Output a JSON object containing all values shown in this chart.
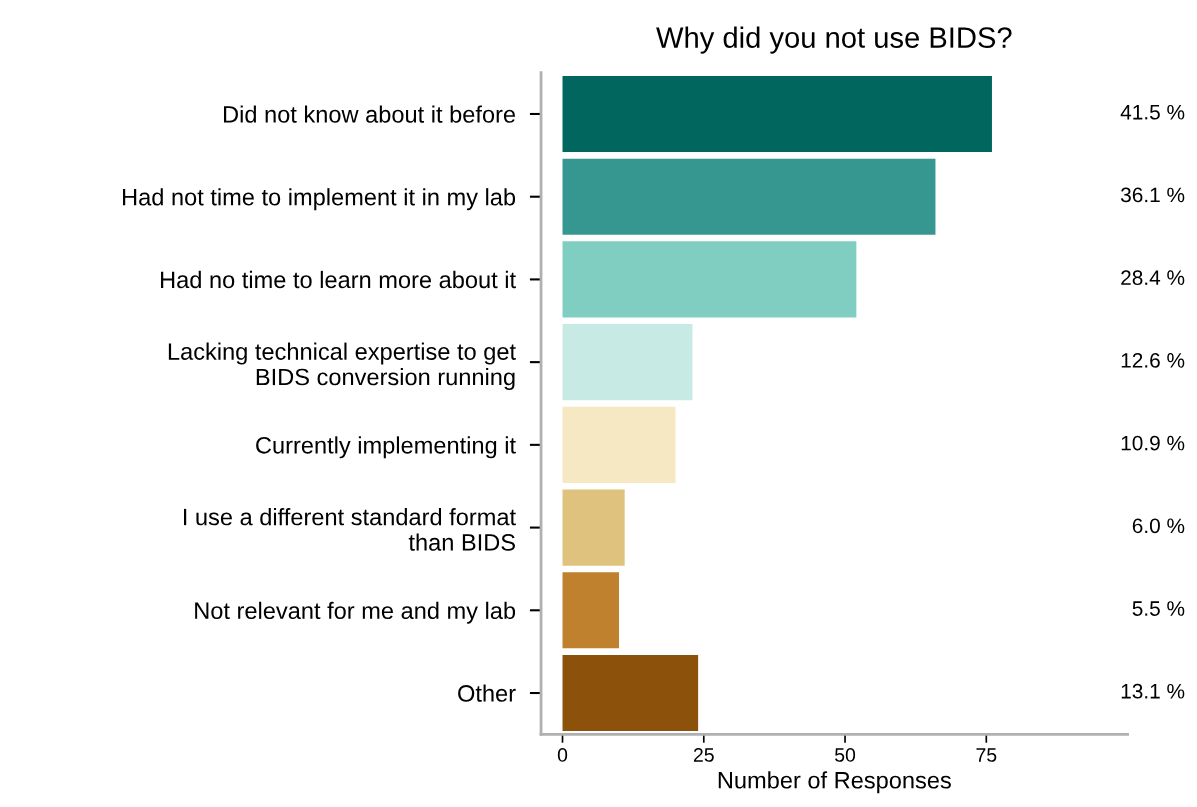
{
  "chart_data": {
    "type": "bar",
    "orientation": "horizontal",
    "title": "Why did you not use BIDS?",
    "xlabel": "Number of Responses",
    "categories": [
      "Did not know about it before",
      "Had not time to implement it in my lab",
      "Had no time to learn more about it",
      "Lacking technical expertise to get\nBIDS conversion running",
      "Currently implementing it",
      "I use a different standard format\nthan BIDS",
      "Not relevant for me and my lab",
      "Other"
    ],
    "values": [
      76,
      66,
      52,
      23,
      20,
      11,
      10,
      24
    ],
    "colors": [
      "#01665e",
      "#35978f",
      "#80cdc1",
      "#c7eae5",
      "#f6e8c3",
      "#dfc27d",
      "#bf812d",
      "#8c510a"
    ],
    "annotations": [
      "41.5 %",
      "36.1 %",
      "28.4 %",
      "12.6 %",
      "10.9 %",
      "6.0 %",
      "5.5 %",
      "13.1 %"
    ],
    "xlim": [
      -3.8,
      100
    ],
    "xticks": [
      0,
      25,
      50,
      75
    ],
    "grid": false,
    "legend": false
  }
}
